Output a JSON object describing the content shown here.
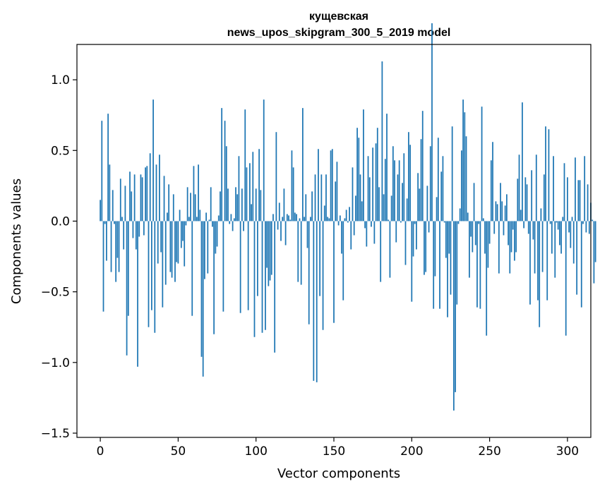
{
  "chart_data": {
    "type": "bar",
    "title_line1": "кущевская",
    "title_line2": "news_upos_skipgram_300_5_2019 model",
    "xlabel": "Vector components",
    "ylabel": "Components values",
    "xlim": [
      -15,
      315
    ],
    "ylim": [
      -1.53,
      1.25
    ],
    "xticks": [
      0,
      50,
      100,
      150,
      200,
      250,
      300
    ],
    "yticks": [
      1.0,
      0.5,
      0.0,
      -0.5,
      -1.0,
      -1.5
    ],
    "xtick_labels": [
      "0",
      "50",
      "100",
      "150",
      "200",
      "250",
      "300"
    ],
    "ytick_labels": [
      "1.0",
      "0.5",
      "0.0",
      "−0.5",
      "−1.0",
      "−1.5"
    ],
    "bar_color": "#1f77b4",
    "values": [
      0.15,
      0.71,
      -0.64,
      -0.02,
      -0.28,
      0.76,
      0.4,
      -0.36,
      0.22,
      -0.02,
      -0.43,
      -0.26,
      -0.36,
      0.3,
      0.03,
      -0.2,
      0.25,
      -0.95,
      -0.67,
      0.35,
      0.21,
      -0.12,
      0.33,
      -0.2,
      -1.03,
      -0.11,
      0.33,
      0.31,
      -0.1,
      0.38,
      0.39,
      -0.75,
      0.48,
      -0.63,
      0.86,
      -0.79,
      0.4,
      -0.3,
      0.47,
      -0.22,
      -0.61,
      0.32,
      -0.45,
      0.06,
      0.26,
      -0.36,
      -0.4,
      0.19,
      -0.43,
      -0.29,
      -0.3,
      0.08,
      -0.19,
      -0.14,
      -0.32,
      -0.03,
      0.24,
      0.03,
      0.2,
      -0.67,
      0.39,
      0.19,
      0.03,
      0.4,
      0.08,
      -0.96,
      -1.1,
      -0.41,
      0.06,
      -0.37,
      0.01,
      0.24,
      -0.04,
      -0.8,
      -0.23,
      -0.18,
      0.04,
      0.21,
      0.8,
      -0.64,
      0.71,
      0.53,
      0.23,
      -0.02,
      0.05,
      -0.07,
      0.02,
      0.24,
      0.19,
      0.46,
      -0.65,
      0.23,
      -0.07,
      0.79,
      0.38,
      -0.63,
      0.41,
      0.12,
      0.49,
      -0.82,
      0.23,
      -0.53,
      0.51,
      0.22,
      -0.79,
      0.86,
      -0.77,
      -0.33,
      -0.46,
      -0.42,
      -0.38,
      0.05,
      -0.93,
      0.63,
      -0.06,
      0.13,
      -0.14,
      0.03,
      0.23,
      -0.17,
      0.05,
      0.04,
      0.01,
      0.5,
      0.38,
      0.06,
      0.05,
      -0.43,
      0.02,
      -0.45,
      0.8,
      0.03,
      0.19,
      -0.19,
      -0.73,
      0.03,
      0.21,
      -1.13,
      0.33,
      -1.14,
      0.51,
      -0.53,
      0.33,
      -0.77,
      0.11,
      0.33,
      0.03,
      0.02,
      0.5,
      0.51,
      -0.72,
      0.28,
      0.42,
      -0.03,
      0.04,
      -0.23,
      -0.56,
      0.02,
      0.08,
      -0.01,
      0.1,
      -0.2,
      0.38,
      -0.1,
      0.18,
      0.66,
      0.59,
      0.33,
      0.14,
      0.79,
      -0.05,
      -0.18,
      0.46,
      0.31,
      -0.04,
      0.52,
      -0.16,
      0.55,
      0.66,
      0.24,
      -0.43,
      1.13,
      0.19,
      0.44,
      0.76,
      0.01,
      -0.4,
      0.18,
      0.53,
      0.43,
      -0.15,
      0.33,
      0.43,
      -0.01,
      0.27,
      0.48,
      -0.31,
      0.16,
      0.63,
      0.54,
      -0.57,
      -0.25,
      -0.02,
      -0.2,
      0.34,
      0.23,
      0.58,
      0.78,
      -0.38,
      -0.36,
      0.25,
      -0.08,
      0.53,
      1.4,
      -0.62,
      -0.39,
      0.17,
      0.59,
      -0.62,
      0.35,
      0.46,
      -0.01,
      -0.26,
      -0.68,
      -0.23,
      -0.52,
      0.67,
      -1.34,
      -1.21,
      -0.59,
      -0.02,
      0.09,
      0.5,
      0.86,
      0.77,
      0.6,
      0.06,
      -0.4,
      -0.11,
      -0.22,
      0.27,
      -0.17,
      -0.61,
      -0.02,
      -0.62,
      0.81,
      0.02,
      -0.23,
      -0.81,
      -0.33,
      -0.16,
      0.43,
      0.56,
      -0.09,
      0.14,
      0.12,
      -0.37,
      0.27,
      0.14,
      -0.1,
      0.11,
      0.19,
      -0.17,
      -0.37,
      -0.22,
      -0.06,
      -0.28,
      -0.22,
      0.3,
      0.47,
      0.08,
      0.84,
      -0.05,
      0.31,
      0.26,
      -0.09,
      -0.59,
      0.36,
      -0.13,
      -0.37,
      0.47,
      -0.56,
      -0.75,
      0.09,
      -0.36,
      0.33,
      0.67,
      -0.56,
      0.65,
      -0.02,
      -0.23,
      0.46,
      -0.4,
      -0.01,
      -0.06,
      -0.17,
      -0.23,
      0.03,
      0.41,
      -0.81,
      0.31,
      -0.08,
      -0.19,
      0.03,
      -0.3,
      0.45,
      -0.52,
      0.29,
      0.29,
      -0.61,
      -0.02,
      0.46,
      -0.08,
      0.26,
      -0.09,
      0.13,
      0.01,
      -0.44,
      -0.29
    ]
  }
}
